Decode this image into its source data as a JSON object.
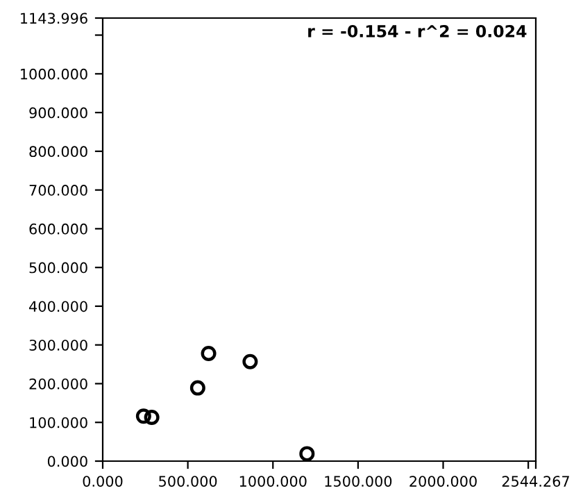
{
  "chart_data": {
    "type": "scatter",
    "marker": "circle",
    "grid": false,
    "annotations": [
      "r = -0.154 - r^2 = 0.024"
    ],
    "x": [
      240,
      288,
      558,
      622,
      866,
      1200
    ],
    "series": [
      {
        "color": "#000000",
        "values": [
          116,
          113,
          189,
          278,
          257,
          19
        ]
      }
    ],
    "xlim": [
      0,
      2544.267
    ],
    "xticks": [
      {
        "value": 0,
        "label": "0.000"
      },
      {
        "value": 500,
        "label": "500.000"
      },
      {
        "value": 1000,
        "label": "1000.000"
      },
      {
        "value": 1500,
        "label": "1500.000"
      },
      {
        "value": 2000,
        "label": "2000.000"
      },
      {
        "value": 2500,
        "label": null
      },
      {
        "value": 2544.267,
        "label": "2544.267"
      }
    ],
    "ylim": [
      0,
      1143.996
    ],
    "yticks": [
      {
        "value": 0,
        "label": "0.000"
      },
      {
        "value": 100,
        "label": "100.000"
      },
      {
        "value": 200,
        "label": "200.000"
      },
      {
        "value": 300,
        "label": "300.000"
      },
      {
        "value": 400,
        "label": "400.000"
      },
      {
        "value": 500,
        "label": "500.000"
      },
      {
        "value": 600,
        "label": "600.000"
      },
      {
        "value": 700,
        "label": "700.000"
      },
      {
        "value": 800,
        "label": "800.000"
      },
      {
        "value": 900,
        "label": "900.000"
      },
      {
        "value": 1000,
        "label": "1000.000"
      },
      {
        "value": 1100,
        "label": null
      },
      {
        "value": 1143.996,
        "label": "1143.996"
      }
    ]
  }
}
